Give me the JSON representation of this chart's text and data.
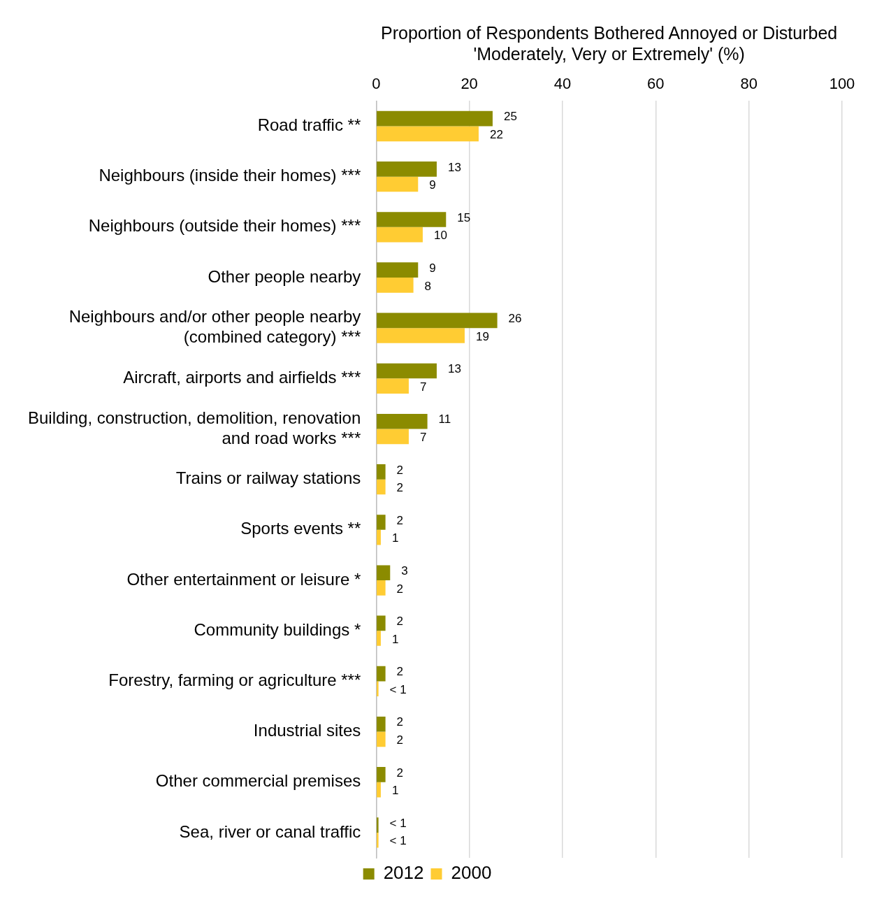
{
  "chart_data": {
    "type": "bar",
    "orientation": "horizontal",
    "xlabel": "Proportion of Respondents Bothered Annoyed or Disturbed 'Moderately, Very or Extremely' (%)",
    "categories": [
      "Road traffic **",
      "Neighbours (inside their homes) ***",
      "Neighbours (outside their homes) ***",
      "Other people nearby",
      "Neighbours and/or other people nearby (combined category) ***",
      "Aircraft, airports and airfields ***",
      "Building, construction, demolition, renovation and road works ***",
      "Trains or railway stations",
      "Sports events **",
      "Other entertainment or leisure *",
      "Community buildings *",
      "Forestry, farming or agriculture ***",
      "Industrial sites",
      "Other commercial premises",
      "Sea, river or canal traffic"
    ],
    "series": [
      {
        "name": "2012",
        "color": "#8b8b00",
        "values": [
          25,
          13,
          15,
          9,
          26,
          13,
          11,
          2,
          2,
          3,
          2,
          2,
          2,
          2,
          0.5
        ],
        "value_labels": [
          "25",
          "13",
          "15",
          "9",
          "26",
          "13",
          "11",
          "2",
          "2",
          "3",
          "2",
          "2",
          "2",
          "2",
          "< 1"
        ]
      },
      {
        "name": "2000",
        "color": "#ffcc33",
        "values": [
          22,
          9,
          10,
          8,
          19,
          7,
          7,
          2,
          1,
          2,
          1,
          0.5,
          2,
          1,
          0.5
        ],
        "value_labels": [
          "22",
          "9",
          "10",
          "8",
          "19",
          "7",
          "7",
          "2",
          "1",
          "2",
          "1",
          "< 1",
          "2",
          "1",
          "< 1"
        ]
      }
    ],
    "xlim": [
      0,
      100
    ],
    "xticks": [
      0,
      20,
      40,
      60,
      80,
      100
    ],
    "grid": "x",
    "legend": "bottom"
  }
}
